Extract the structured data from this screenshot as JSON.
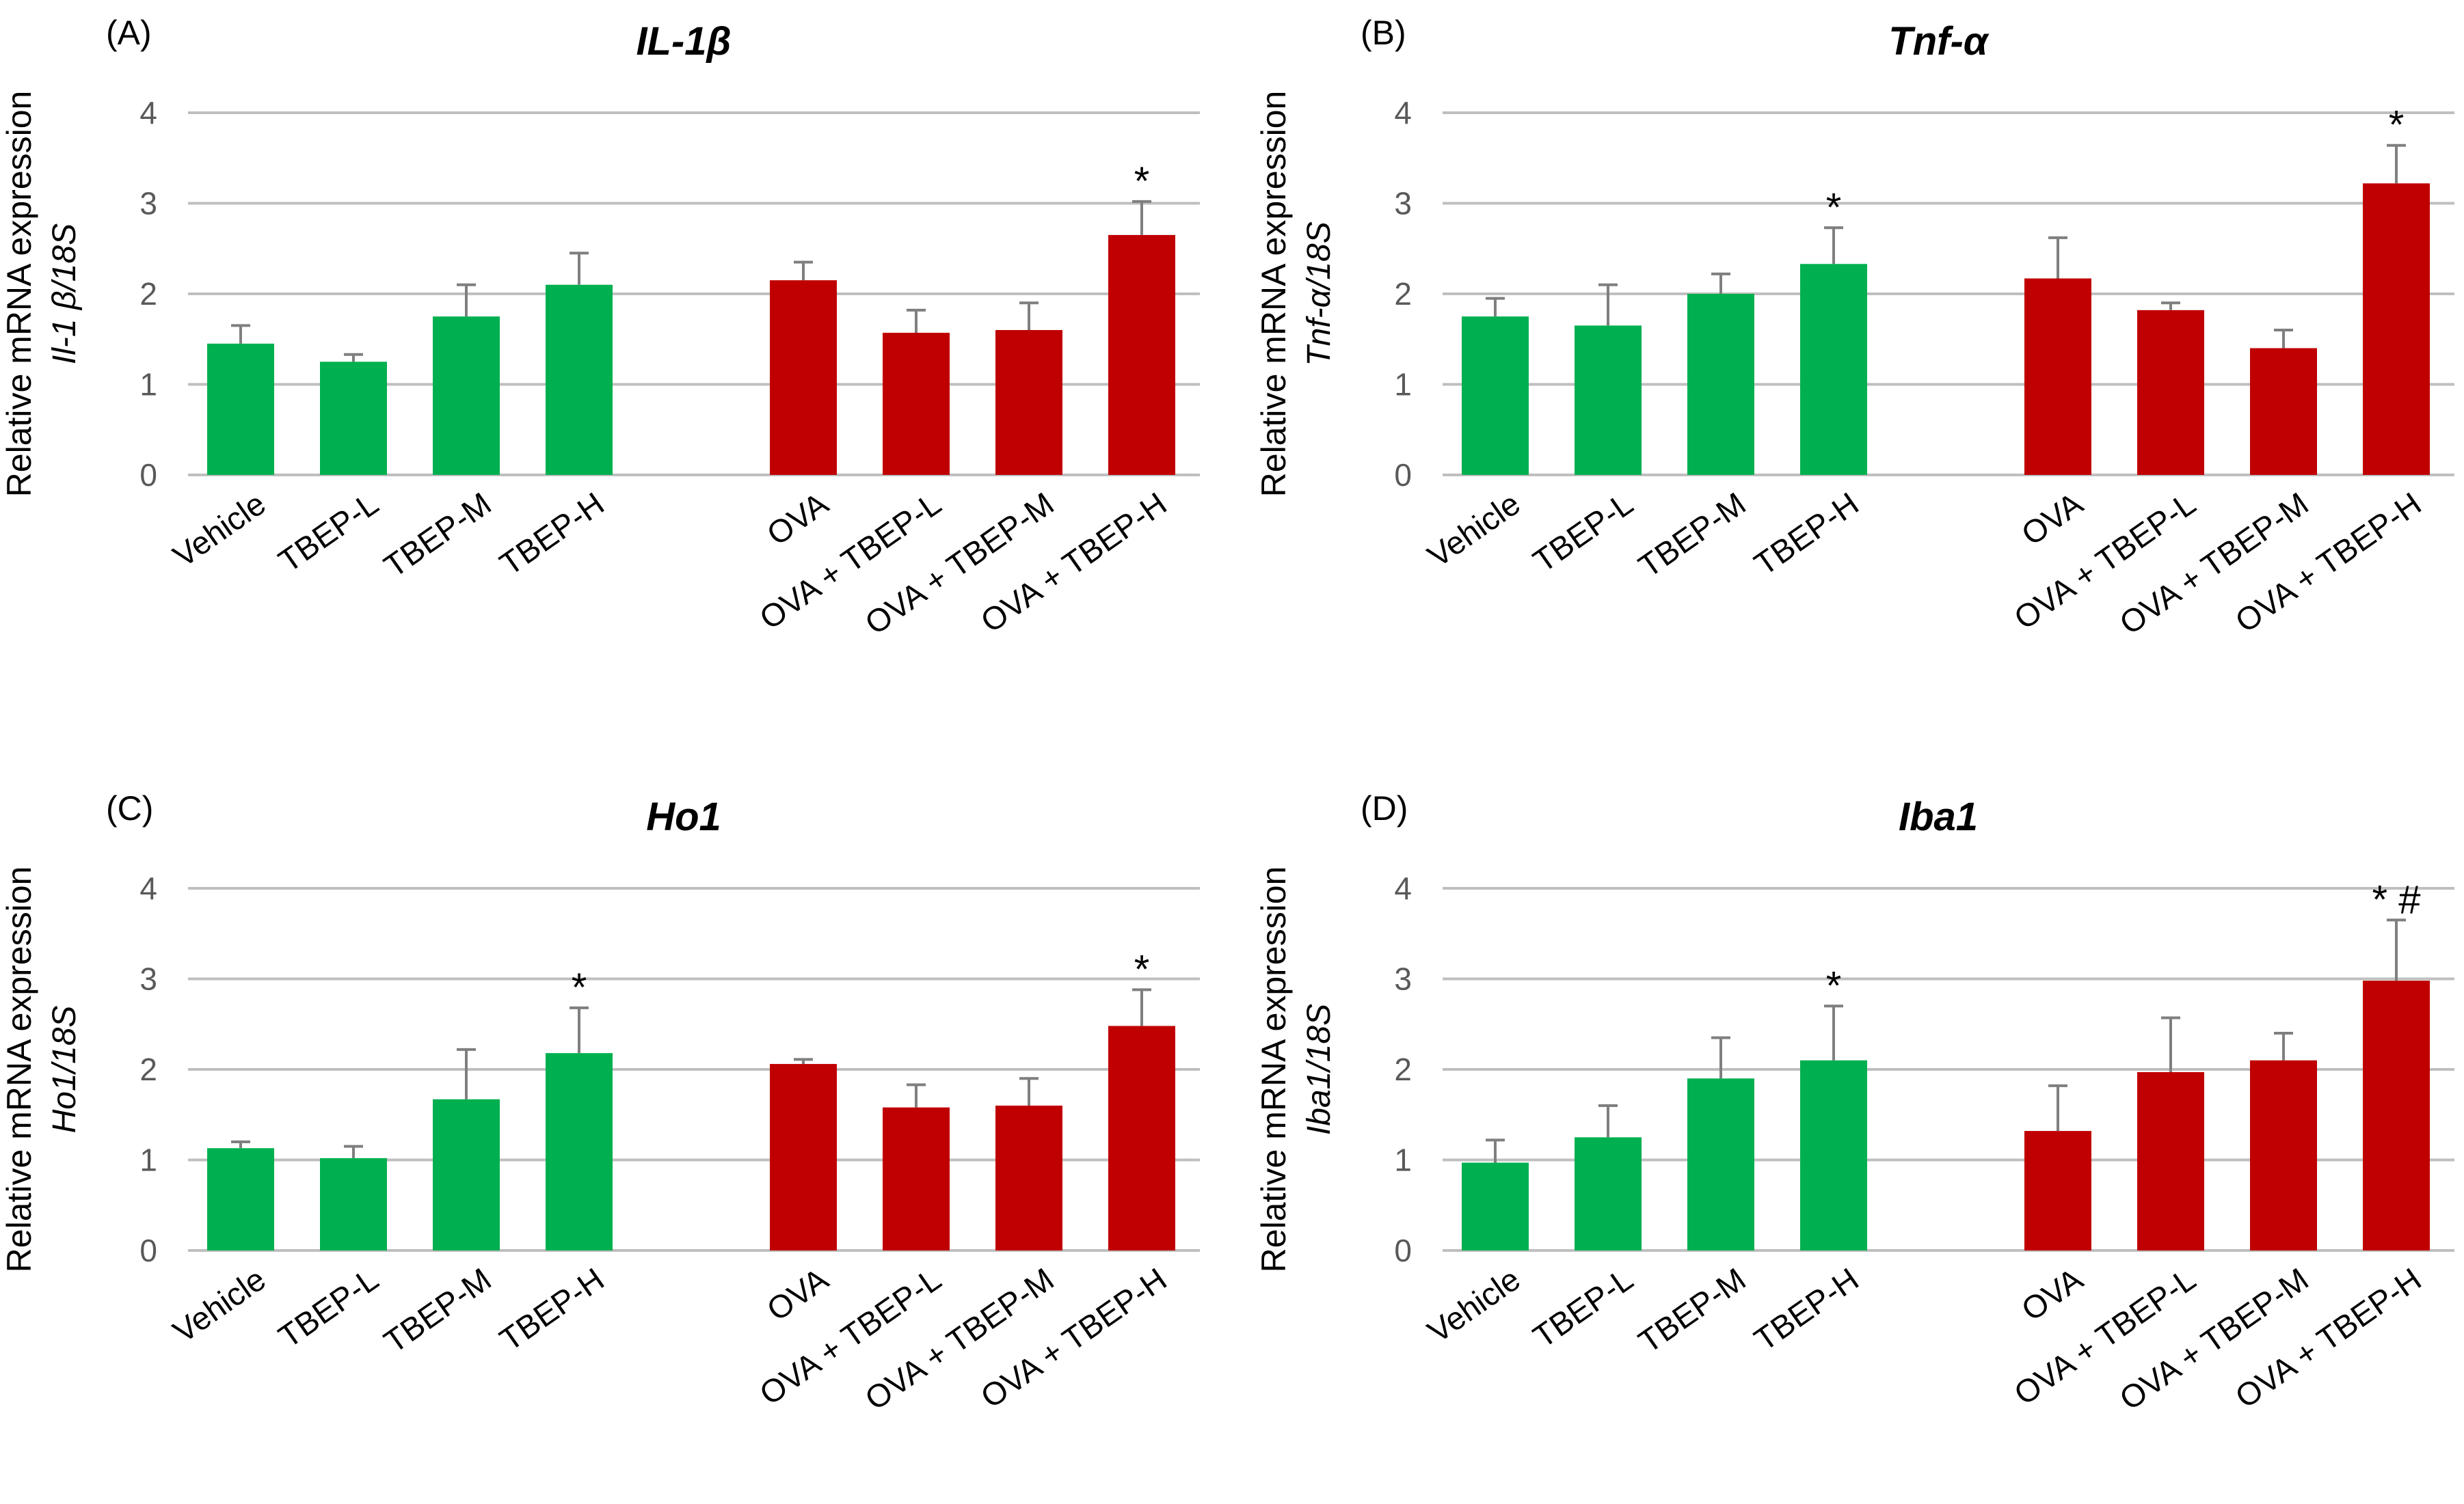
{
  "colors": {
    "vehicle_group": "#00b050",
    "ova_group": "#c00000",
    "grid": "#bfbfbf",
    "error_bar": "#7f7f7f"
  },
  "chart_data": [
    {
      "type": "bar",
      "panel_label": "(A)",
      "title": "IL-1β",
      "ylabel": "Relative mRNA expression",
      "ylabel_sub": "Il-1 β/18S",
      "ylim": [
        0,
        4
      ],
      "yticks": [
        "0",
        "1",
        "2",
        "3",
        "4"
      ],
      "categories": [
        "Vehicle",
        "TBEP-L",
        "TBEP-M",
        "TBEP-H",
        "OVA",
        "OVA + TBEP-L",
        "OVA + TBEP-M",
        "OVA + TBEP-H"
      ],
      "values": [
        1.45,
        1.25,
        1.75,
        2.1,
        2.15,
        1.57,
        1.6,
        2.65
      ],
      "errors": [
        0.2,
        0.08,
        0.35,
        0.35,
        0.2,
        0.25,
        0.3,
        0.37
      ],
      "annotations": [
        "",
        "",
        "",
        "",
        "",
        "",
        "",
        "*"
      ]
    },
    {
      "type": "bar",
      "panel_label": "(B)",
      "title": "Tnf-α",
      "ylabel": "Relative mRNA expression",
      "ylabel_sub": "Tnf-α/18S",
      "ylim": [
        0,
        4
      ],
      "yticks": [
        "0",
        "1",
        "2",
        "3",
        "4"
      ],
      "categories": [
        "Vehicle",
        "TBEP-L",
        "TBEP-M",
        "TBEP-H",
        "OVA",
        "OVA + TBEP-L",
        "OVA + TBEP-M",
        "OVA + TBEP-H"
      ],
      "values": [
        1.75,
        1.65,
        2.0,
        2.33,
        2.17,
        1.82,
        1.4,
        3.22
      ],
      "errors": [
        0.2,
        0.45,
        0.22,
        0.4,
        0.45,
        0.08,
        0.2,
        0.42
      ],
      "annotations": [
        "",
        "",
        "",
        "*",
        "",
        "",
        "",
        "*"
      ]
    },
    {
      "type": "bar",
      "panel_label": "(C)",
      "title": "Ho1",
      "ylabel": "Relative mRNA expression",
      "ylabel_sub": "Ho1/18S",
      "ylim": [
        0,
        4
      ],
      "yticks": [
        "0",
        "1",
        "2",
        "3",
        "4"
      ],
      "categories": [
        "Vehicle",
        "TBEP-L",
        "TBEP-M",
        "TBEP-H",
        "OVA",
        "OVA + TBEP-L",
        "OVA + TBEP-M",
        "OVA + TBEP-H"
      ],
      "values": [
        1.13,
        1.02,
        1.67,
        2.18,
        2.06,
        1.58,
        1.6,
        2.48
      ],
      "errors": [
        0.07,
        0.13,
        0.55,
        0.5,
        0.05,
        0.25,
        0.3,
        0.4
      ],
      "annotations": [
        "",
        "",
        "",
        "*",
        "",
        "",
        "",
        "*"
      ]
    },
    {
      "type": "bar",
      "panel_label": "(D)",
      "title": "Iba1",
      "ylabel": "Relative mRNA expression",
      "ylabel_sub": "Iba1/18S",
      "ylim": [
        0,
        4
      ],
      "yticks": [
        "0",
        "1",
        "2",
        "3",
        "4"
      ],
      "categories": [
        "Vehicle",
        "TBEP-L",
        "TBEP-M",
        "TBEP-H",
        "OVA",
        "OVA + TBEP-L",
        "OVA + TBEP-M",
        "OVA + TBEP-H"
      ],
      "values": [
        0.97,
        1.25,
        1.9,
        2.1,
        1.32,
        1.97,
        2.1,
        2.98
      ],
      "errors": [
        0.25,
        0.35,
        0.45,
        0.6,
        0.5,
        0.6,
        0.3,
        0.67
      ],
      "annotations": [
        "",
        "",
        "",
        "*",
        "",
        "",
        "",
        "* #"
      ]
    }
  ]
}
